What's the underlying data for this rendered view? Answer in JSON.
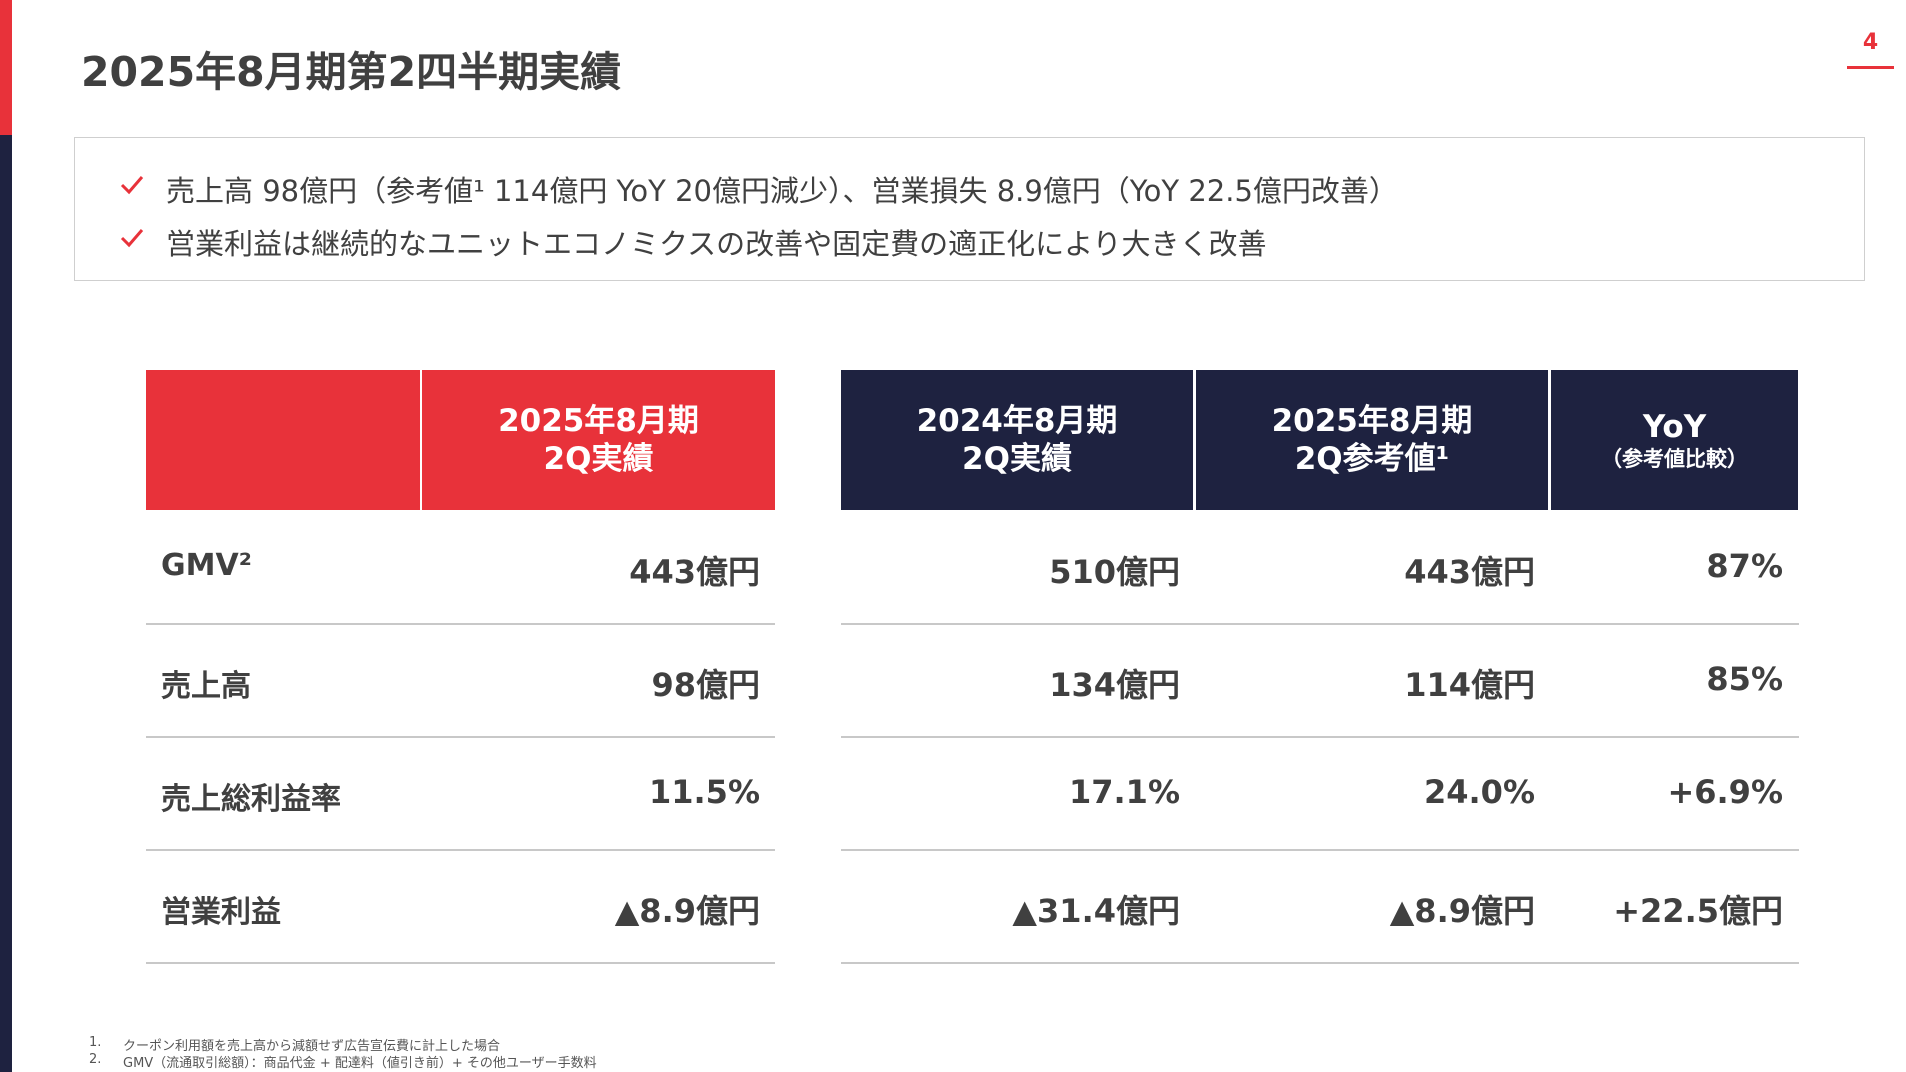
{
  "title": "2025年8月期第2四半期実績",
  "page_number": "4",
  "bullets": [
    "売上高 98億円（参考値¹ 114億円 YoY 20億円減少）、営業損失 8.9億円（YoY 22.5億円改善）",
    "営業利益は継続的なユニットエコノミクスの改善や固定費の適正化により大きく改善"
  ],
  "table": {
    "header": [
      {
        "lines": [
          "2025年8月期",
          "2Q実績"
        ]
      },
      {
        "lines": [
          "2024年8月期",
          "2Q実績"
        ]
      },
      {
        "lines": [
          "2025年8月期",
          "2Q参考値¹"
        ]
      },
      {
        "lines": [
          "YoY"
        ],
        "note": "（参考値比較）"
      }
    ],
    "rows": [
      {
        "label": "GMV²",
        "values": [
          "443億円",
          "510億円",
          "443億円",
          "87%"
        ]
      },
      {
        "label": "売上高",
        "values": [
          "98億円",
          "134億円",
          "114億円",
          "85%"
        ]
      },
      {
        "label": "売上総利益率",
        "values": [
          "11.5%",
          "17.1%",
          "24.0%",
          "+6.9%"
        ]
      },
      {
        "label": "営業利益",
        "values": [
          "▲8.9億円",
          "▲31.4億円",
          "▲8.9億円",
          "+22.5億円"
        ]
      }
    ]
  },
  "footnotes": [
    {
      "number": "1.",
      "text": "クーポン利用額を売上高から減額せず広告宣伝費に計上した場合"
    },
    {
      "number": "2.",
      "text": "GMV（流通取引総額）：商品代金 + 配達料（値引き前）+ その他ユーザー手数料"
    }
  ]
}
